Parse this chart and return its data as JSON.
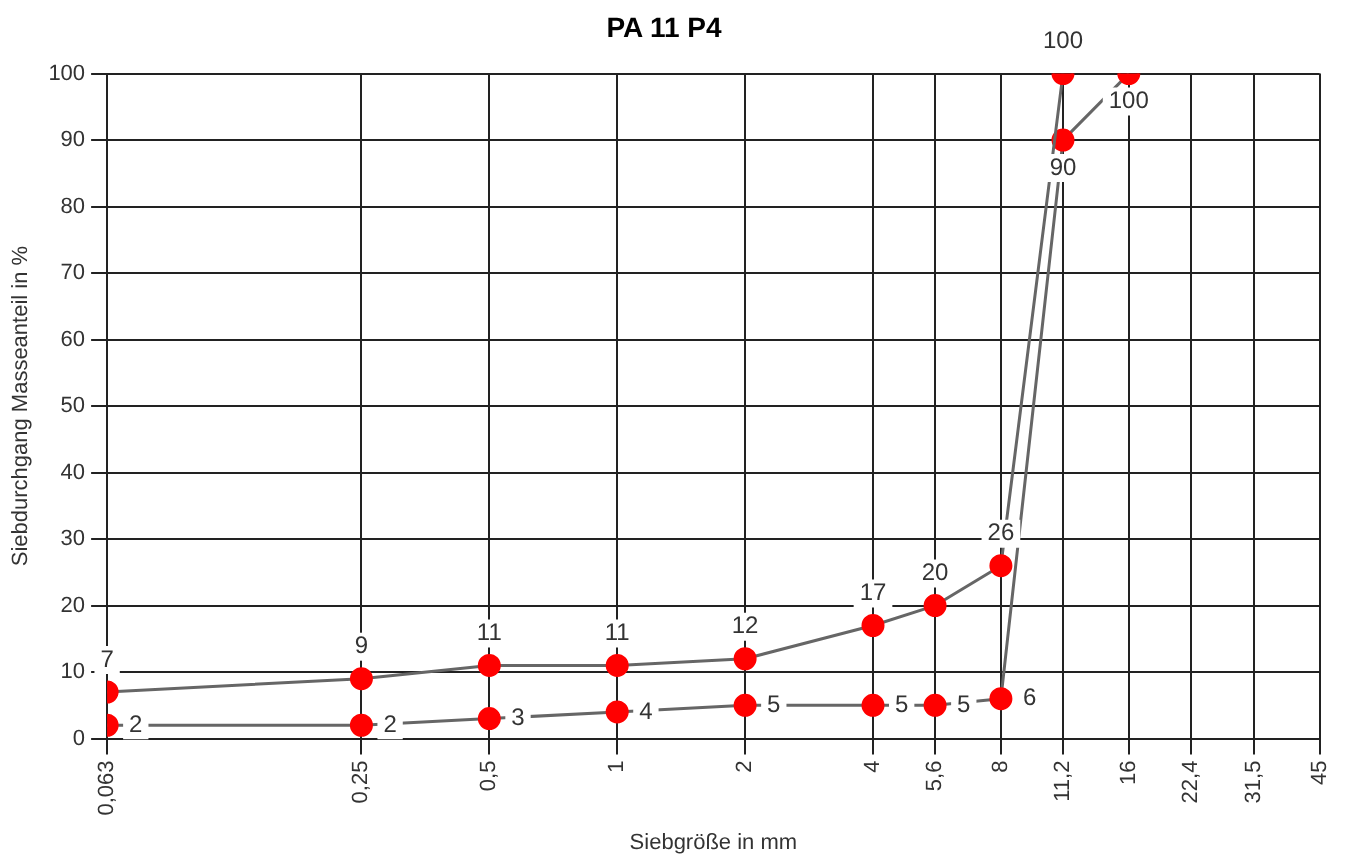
{
  "chart_data": {
    "type": "line",
    "title": "PA 11 P4",
    "xlabel": "Siebgröße in mm",
    "ylabel": "Siebdurchgang Masseanteil in %",
    "log": "x",
    "xlim": [
      0.063,
      45
    ],
    "ylim": [
      0,
      100
    ],
    "xticks": [
      {
        "value": 0.063,
        "label": "0,063"
      },
      {
        "value": 0.25,
        "label": "0,25"
      },
      {
        "value": 0.5,
        "label": "0,5"
      },
      1,
      2,
      4,
      {
        "value": 5.6,
        "label": "5,6"
      },
      8,
      {
        "value": 11.2,
        "label": "11,2"
      },
      16,
      {
        "value": 22.4,
        "label": "22,4"
      },
      {
        "value": 31.5,
        "label": "31,5"
      },
      45
    ],
    "yticks": [
      0,
      10,
      20,
      30,
      40,
      50,
      60,
      70,
      80,
      90,
      100
    ],
    "grid": true,
    "legend": false,
    "marker": "circle",
    "line_style": "solid",
    "data_labels": true,
    "series": [
      {
        "color": "#666666",
        "x": [
          0.063,
          0.25,
          0.5,
          1,
          2,
          4,
          5.6,
          8,
          11.2
        ],
        "values": [
          7,
          9,
          11,
          11,
          12,
          17,
          20,
          26,
          100
        ]
      },
      {
        "color": "#666666",
        "x": [
          0.063,
          0.25,
          0.5,
          1,
          2,
          4,
          5.6,
          8,
          11.2,
          16
        ],
        "values": [
          2,
          2,
          3,
          4,
          5,
          5,
          5,
          6,
          90,
          100
        ]
      }
    ]
  }
}
